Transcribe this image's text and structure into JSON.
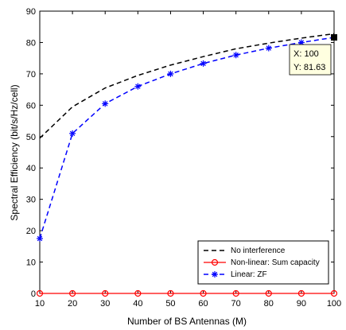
{
  "chart_data": {
    "type": "line",
    "xlabel": "Number of BS Antennas (M)",
    "ylabel": "Spectral Efficiency (bit/s/Hz/cell)",
    "xlim": [
      10,
      100
    ],
    "ylim": [
      0,
      90
    ],
    "xticks": [
      10,
      20,
      30,
      40,
      50,
      60,
      70,
      80,
      90,
      100
    ],
    "yticks": [
      0,
      10,
      20,
      30,
      40,
      50,
      60,
      70,
      80,
      90
    ],
    "grid": false,
    "legend_position": "bottom-right",
    "x": [
      10,
      20,
      30,
      40,
      50,
      60,
      70,
      80,
      90,
      100
    ],
    "series": [
      {
        "name": "No interference",
        "color": "#000000",
        "line": "dashed",
        "marker": "none",
        "values": [
          49.5,
          59.5,
          65.5,
          69.5,
          72.8,
          75.5,
          78.0,
          79.8,
          81.4,
          82.8
        ]
      },
      {
        "name": "Non-linear: Sum capacity",
        "color": "#ff0000",
        "line": "solid",
        "marker": "circle",
        "values": [
          0,
          0,
          0,
          0,
          0,
          0,
          0,
          0,
          0,
          0
        ]
      },
      {
        "name": "Linear: ZF",
        "color": "#0000ff",
        "line": "dashed",
        "marker": "star",
        "values": [
          17.5,
          51.0,
          60.5,
          66.0,
          70.0,
          73.3,
          76.0,
          78.2,
          80.0,
          81.63
        ]
      }
    ],
    "datatip": {
      "x_text": "X: 100",
      "y_text": "Y: 81.63",
      "x": 100,
      "y": 81.63
    }
  }
}
